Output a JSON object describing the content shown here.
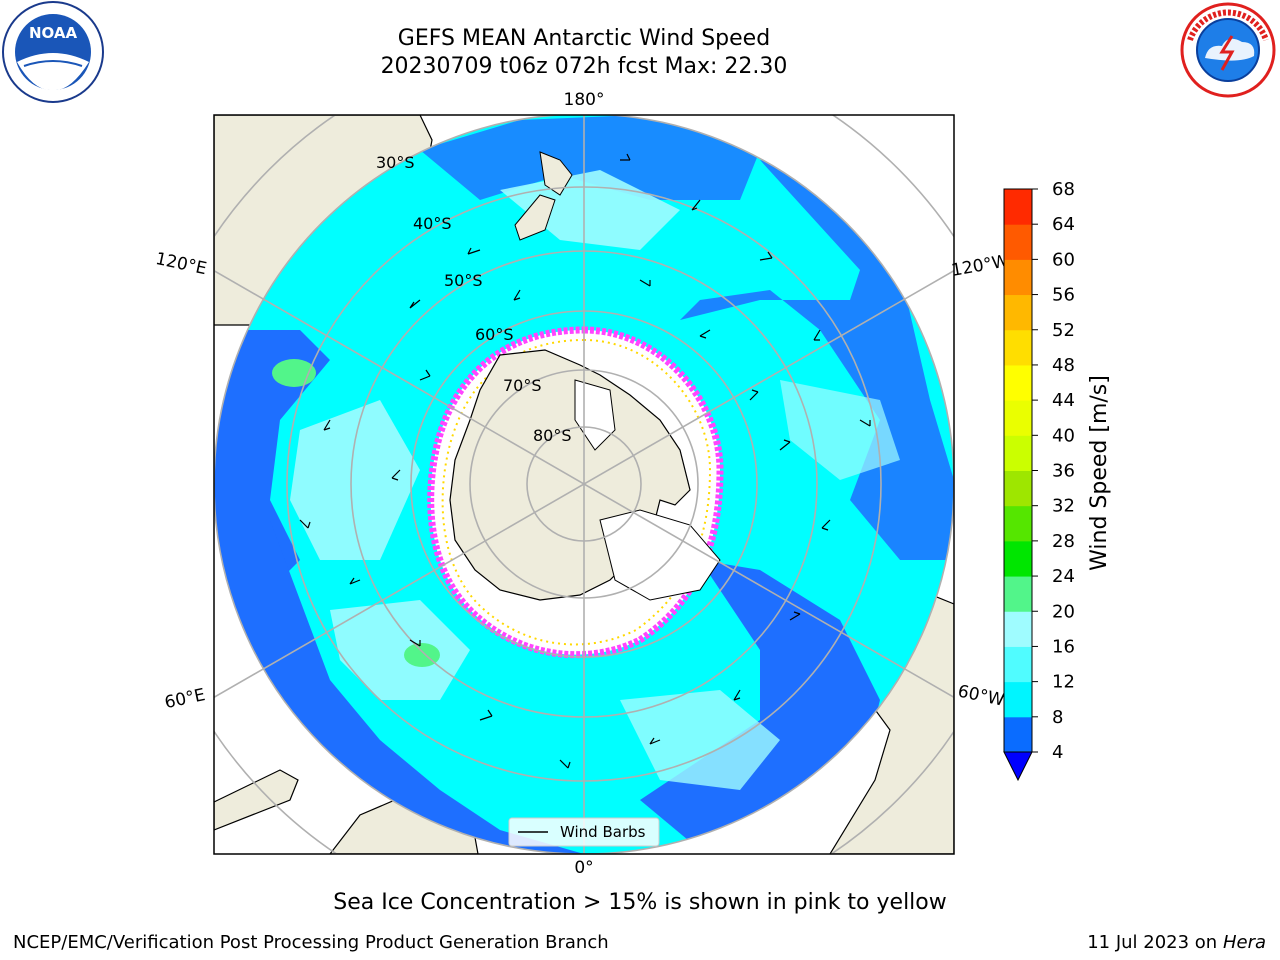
{
  "header": {
    "title_line1": "GEFS MEAN Antarctic Wind Speed",
    "title_line2": "20230709 t06z 072h fcst   Max: 22.30"
  },
  "logos": {
    "left": {
      "name": "noaa-logo",
      "text": "NOAA",
      "ring_text": "NATIONAL OCEANIC AND ATMOSPHERIC ADMINISTRATION · U.S. DEPARTMENT OF COMMERCE"
    },
    "right": {
      "name": "nws-logo",
      "ring_text": "NATIONAL WEATHER SERVICE"
    }
  },
  "map": {
    "longitude_labels": {
      "top": "180°",
      "bottom": "0°",
      "left_upper": "120°E",
      "right_upper": "120°W",
      "left_lower": "60°E",
      "right_lower": "60°W"
    },
    "latitude_labels": [
      "30°S",
      "40°S",
      "50°S",
      "60°S",
      "70°S",
      "80°S"
    ],
    "legend_label": "Wind Barbs",
    "colors": {
      "land": "#eeecdc",
      "ocean_low": "#1e6fff",
      "ocean_mid": "#00ffff",
      "ocean_high": "#9ffcff",
      "ice": "#ffffff",
      "ice_edge": "#ff44ff"
    }
  },
  "colorbar": {
    "label": "Wind Speed [m/s]",
    "ticks": [
      "4",
      "8",
      "12",
      "16",
      "20",
      "24",
      "28",
      "32",
      "36",
      "40",
      "44",
      "48",
      "52",
      "56",
      "60",
      "64",
      "68"
    ],
    "colors": [
      "#0a6cff",
      "#00f5ff",
      "#50fcff",
      "#9ffcff",
      "#52f58a",
      "#00e600",
      "#55e600",
      "#9ee600",
      "#cbff00",
      "#eaff00",
      "#ffff00",
      "#ffde00",
      "#ffb800",
      "#ff8c00",
      "#ff5a00",
      "#ff2a00",
      "#ff0000"
    ],
    "extend_color": "#0000ff"
  },
  "footer": {
    "note": "Sea Ice Concentration > 15% is shown in pink to yellow",
    "credit": "NCEP/EMC/Verification Post Processing Product Generation Branch",
    "date": "11 Jul 2023 on ",
    "host": "Hera"
  }
}
